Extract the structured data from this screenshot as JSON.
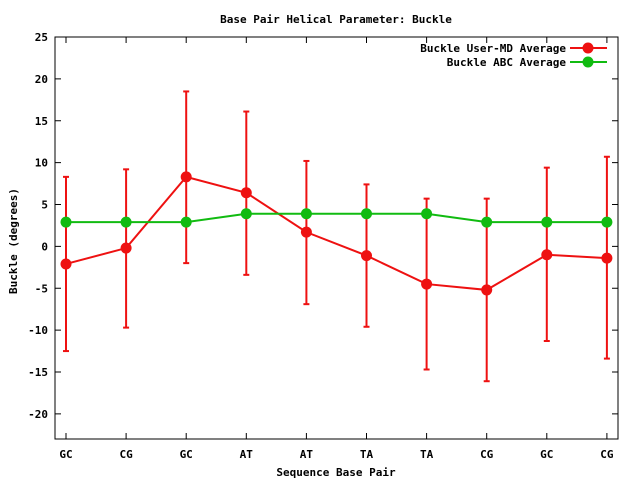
{
  "chart_data": {
    "type": "line",
    "title": "Base Pair Helical Parameter: Buckle",
    "xlabel": "Sequence Base Pair",
    "ylabel": "Buckle (degrees)",
    "categories": [
      "GC",
      "CG",
      "GC",
      "AT",
      "AT",
      "TA",
      "TA",
      "CG",
      "GC",
      "CG"
    ],
    "ylim": [
      -23,
      25
    ],
    "yticks": [
      25,
      20,
      15,
      10,
      5,
      0,
      -5,
      -10,
      -15,
      -20
    ],
    "grid": false,
    "legend_position": "top-right",
    "series": [
      {
        "name": "Buckle User-MD Average",
        "color": "#ee1111",
        "values": [
          -2.1,
          -0.2,
          8.3,
          6.4,
          1.7,
          -1.1,
          -4.5,
          -5.2,
          -1.0,
          -1.4
        ],
        "error_low": [
          -12.5,
          -9.7,
          -2.0,
          -3.4,
          -6.9,
          -9.6,
          -14.7,
          -16.1,
          -11.3,
          -13.4
        ],
        "error_high": [
          8.3,
          9.2,
          18.5,
          16.1,
          10.2,
          7.4,
          5.7,
          5.7,
          9.4,
          10.7
        ]
      },
      {
        "name": "Buckle ABC Average",
        "color": "#11bb11",
        "values": [
          2.9,
          2.9,
          2.9,
          3.9,
          3.9,
          3.9,
          3.9,
          2.9,
          2.9,
          2.9
        ]
      }
    ]
  }
}
